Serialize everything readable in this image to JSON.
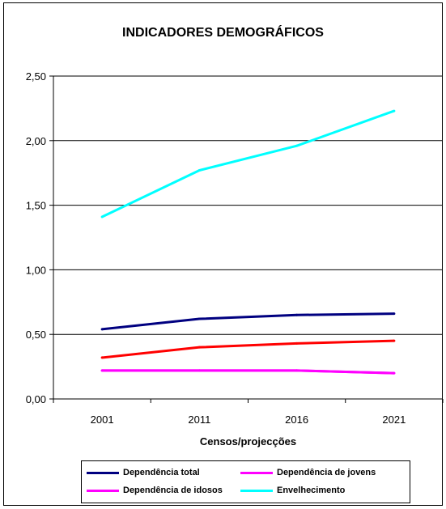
{
  "chart_data": {
    "type": "line",
    "title": "INDICADORES DEMOGRÁFICOS",
    "xlabel": "Censos/projecções",
    "ylabel": "",
    "categories": [
      "2001",
      "2011",
      "2016",
      "2021"
    ],
    "ylim": [
      0,
      2.5
    ],
    "yticks": [
      "0,00",
      "0,50",
      "1,00",
      "1,50",
      "2,00",
      "2,50"
    ],
    "grid": "horizontal",
    "legend_position": "bottom",
    "series": [
      {
        "name": "Dependência total",
        "color": "#000080",
        "values": [
          0.54,
          0.62,
          0.65,
          0.66
        ]
      },
      {
        "name": "",
        "color": "#ff0000",
        "values": [
          0.32,
          0.4,
          0.43,
          0.45
        ]
      },
      {
        "name": "Dependência de jovens",
        "color": "#ff00ff",
        "values": [
          0.22,
          0.22,
          0.22,
          0.2
        ]
      },
      {
        "name": "Dependência de idosos",
        "color": "#ff00ff",
        "values": [
          0.22,
          0.22,
          0.22,
          0.2
        ]
      },
      {
        "name": "Envelhecimento",
        "color": "#00ffff",
        "values": [
          1.41,
          1.77,
          1.96,
          2.23
        ]
      }
    ],
    "legend": [
      {
        "label": "Dependência total",
        "color": "#000080"
      },
      {
        "label": "Dependência de jovens",
        "color": "#ff00ff"
      },
      {
        "label": "Dependência de idosos",
        "color": "#ff00ff"
      },
      {
        "label": "Envelhecimento",
        "color": "#00ffff"
      }
    ]
  }
}
